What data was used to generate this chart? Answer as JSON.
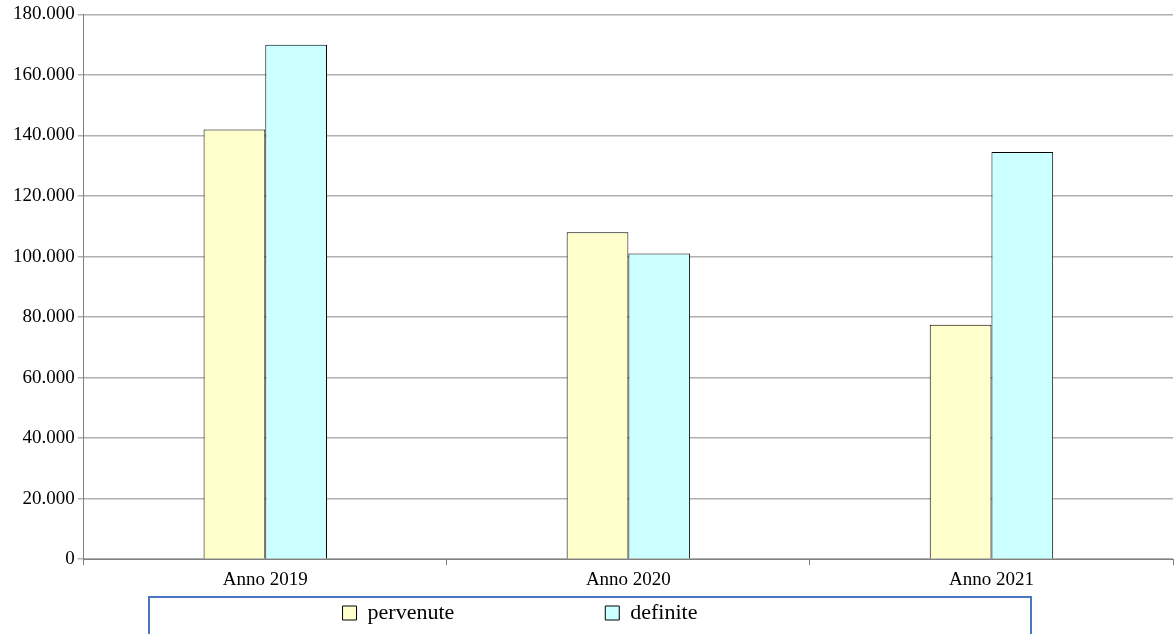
{
  "chart_data": {
    "type": "bar",
    "categories": [
      "Anno 2019",
      "Anno 2020",
      "Anno 2021"
    ],
    "series": [
      {
        "name": "pervenute",
        "color": "#ffffcc",
        "values": [
          142000,
          108000,
          77500
        ]
      },
      {
        "name": "definite",
        "color": "#ccffff",
        "values": [
          170000,
          101000,
          134500
        ]
      }
    ],
    "ylim": [
      0,
      180000
    ],
    "yticks": [
      {
        "value": 0,
        "label": "0"
      },
      {
        "value": 20000,
        "label": "20.000"
      },
      {
        "value": 40000,
        "label": "40.000"
      },
      {
        "value": 60000,
        "label": "60.000"
      },
      {
        "value": 80000,
        "label": "80.000"
      },
      {
        "value": 100000,
        "label": "100.000"
      },
      {
        "value": 120000,
        "label": "120.000"
      },
      {
        "value": 140000,
        "label": "140.000"
      },
      {
        "value": 160000,
        "label": "160.000"
      },
      {
        "value": 180000,
        "label": "180.000"
      }
    ],
    "grid": "y",
    "legend": "bottom"
  }
}
